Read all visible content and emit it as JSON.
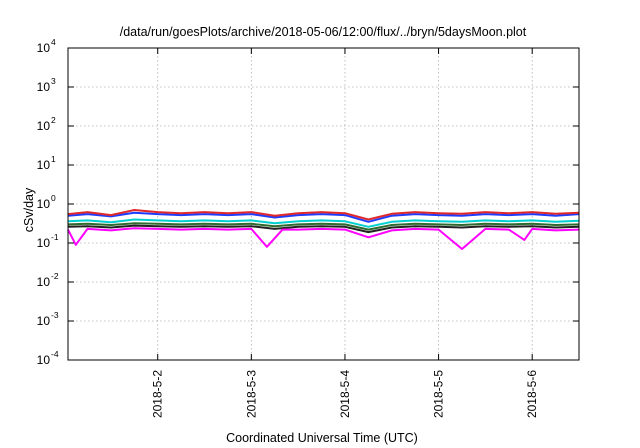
{
  "chart_data": {
    "type": "line",
    "title": "/data/run/goesPlots/archive/2018-05-06/12:00/flux/../bryn/5daysMoon.plot",
    "xlabel": "Coordinated Universal Time (UTC)",
    "ylabel": "cSv/day",
    "y_scale": "log",
    "ylim": [
      0.0001,
      10000
    ],
    "y_ticks": [
      {
        "base": "10",
        "exp": "-4",
        "value": 0.0001
      },
      {
        "base": "10",
        "exp": "-3",
        "value": 0.001
      },
      {
        "base": "10",
        "exp": "-2",
        "value": 0.01
      },
      {
        "base": "10",
        "exp": "-1",
        "value": 0.1
      },
      {
        "base": "10",
        "exp": "0",
        "value": 1
      },
      {
        "base": "10",
        "exp": "1",
        "value": 10
      },
      {
        "base": "10",
        "exp": "2",
        "value": 100
      },
      {
        "base": "10",
        "exp": "3",
        "value": 1000
      },
      {
        "base": "10",
        "exp": "4",
        "value": 10000
      }
    ],
    "xlim": [
      "2018-05-01 01:00",
      "2018-05-06 12:00"
    ],
    "x_ticks": [
      "2018-5-2",
      "2018-5-3",
      "2018-5-4",
      "2018-5-5",
      "2018-5-6"
    ],
    "grid": true,
    "series": [
      {
        "color": "#1e3cff",
        "points": [
          [
            "2018-05-01 01:00",
            0.5
          ],
          [
            "2018-05-01 06:00",
            0.55
          ],
          [
            "2018-05-01 12:00",
            0.48
          ],
          [
            "2018-05-01 18:00",
            0.6
          ],
          [
            "2018-05-02 00:00",
            0.55
          ],
          [
            "2018-05-02 06:00",
            0.52
          ],
          [
            "2018-05-02 12:00",
            0.55
          ],
          [
            "2018-05-02 18:00",
            0.52
          ],
          [
            "2018-05-03 00:00",
            0.55
          ],
          [
            "2018-05-03 06:00",
            0.45
          ],
          [
            "2018-05-03 12:00",
            0.52
          ],
          [
            "2018-05-03 18:00",
            0.55
          ],
          [
            "2018-05-04 00:00",
            0.52
          ],
          [
            "2018-05-04 06:00",
            0.35
          ],
          [
            "2018-05-04 12:00",
            0.5
          ],
          [
            "2018-05-04 18:00",
            0.55
          ],
          [
            "2018-05-05 00:00",
            0.52
          ],
          [
            "2018-05-05 06:00",
            0.5
          ],
          [
            "2018-05-05 12:00",
            0.55
          ],
          [
            "2018-05-05 18:00",
            0.52
          ],
          [
            "2018-05-06 00:00",
            0.55
          ],
          [
            "2018-05-06 06:00",
            0.5
          ],
          [
            "2018-05-06 12:00",
            0.55
          ]
        ]
      },
      {
        "color": "#e0282a",
        "points": [
          [
            "2018-05-01 01:00",
            0.55
          ],
          [
            "2018-05-01 06:00",
            0.62
          ],
          [
            "2018-05-01 12:00",
            0.52
          ],
          [
            "2018-05-01 18:00",
            0.7
          ],
          [
            "2018-05-02 00:00",
            0.62
          ],
          [
            "2018-05-02 06:00",
            0.58
          ],
          [
            "2018-05-02 12:00",
            0.62
          ],
          [
            "2018-05-02 18:00",
            0.58
          ],
          [
            "2018-05-03 00:00",
            0.62
          ],
          [
            "2018-05-03 06:00",
            0.5
          ],
          [
            "2018-05-03 12:00",
            0.58
          ],
          [
            "2018-05-03 18:00",
            0.62
          ],
          [
            "2018-05-04 00:00",
            0.58
          ],
          [
            "2018-05-04 06:00",
            0.4
          ],
          [
            "2018-05-04 12:00",
            0.56
          ],
          [
            "2018-05-04 18:00",
            0.62
          ],
          [
            "2018-05-05 00:00",
            0.58
          ],
          [
            "2018-05-05 06:00",
            0.56
          ],
          [
            "2018-05-05 12:00",
            0.62
          ],
          [
            "2018-05-05 18:00",
            0.58
          ],
          [
            "2018-05-06 00:00",
            0.62
          ],
          [
            "2018-05-06 06:00",
            0.56
          ],
          [
            "2018-05-06 12:00",
            0.6
          ]
        ]
      },
      {
        "color": "#00d0d0",
        "points": [
          [
            "2018-05-01 01:00",
            0.36
          ],
          [
            "2018-05-01 06:00",
            0.38
          ],
          [
            "2018-05-01 12:00",
            0.34
          ],
          [
            "2018-05-01 18:00",
            0.4
          ],
          [
            "2018-05-02 00:00",
            0.38
          ],
          [
            "2018-05-02 06:00",
            0.36
          ],
          [
            "2018-05-02 12:00",
            0.38
          ],
          [
            "2018-05-02 18:00",
            0.36
          ],
          [
            "2018-05-03 00:00",
            0.38
          ],
          [
            "2018-05-03 06:00",
            0.32
          ],
          [
            "2018-05-03 12:00",
            0.36
          ],
          [
            "2018-05-03 18:00",
            0.38
          ],
          [
            "2018-05-04 00:00",
            0.36
          ],
          [
            "2018-05-04 06:00",
            0.26
          ],
          [
            "2018-05-04 12:00",
            0.35
          ],
          [
            "2018-05-04 18:00",
            0.38
          ],
          [
            "2018-05-05 00:00",
            0.36
          ],
          [
            "2018-05-05 06:00",
            0.35
          ],
          [
            "2018-05-05 12:00",
            0.38
          ],
          [
            "2018-05-05 18:00",
            0.36
          ],
          [
            "2018-05-06 00:00",
            0.38
          ],
          [
            "2018-05-06 06:00",
            0.35
          ],
          [
            "2018-05-06 12:00",
            0.37
          ]
        ]
      },
      {
        "color": "#2f6b2f",
        "points": [
          [
            "2018-05-01 01:00",
            0.3
          ],
          [
            "2018-05-01 06:00",
            0.31
          ],
          [
            "2018-05-01 12:00",
            0.29
          ],
          [
            "2018-05-01 18:00",
            0.32
          ],
          [
            "2018-05-02 00:00",
            0.31
          ],
          [
            "2018-05-02 06:00",
            0.3
          ],
          [
            "2018-05-02 12:00",
            0.31
          ],
          [
            "2018-05-02 18:00",
            0.3
          ],
          [
            "2018-05-03 00:00",
            0.31
          ],
          [
            "2018-05-03 06:00",
            0.27
          ],
          [
            "2018-05-03 12:00",
            0.3
          ],
          [
            "2018-05-03 18:00",
            0.31
          ],
          [
            "2018-05-04 00:00",
            0.3
          ],
          [
            "2018-05-04 06:00",
            0.22
          ],
          [
            "2018-05-04 12:00",
            0.29
          ],
          [
            "2018-05-04 18:00",
            0.31
          ],
          [
            "2018-05-05 00:00",
            0.3
          ],
          [
            "2018-05-05 06:00",
            0.29
          ],
          [
            "2018-05-05 12:00",
            0.31
          ],
          [
            "2018-05-05 18:00",
            0.3
          ],
          [
            "2018-05-06 00:00",
            0.31
          ],
          [
            "2018-05-06 06:00",
            0.29
          ],
          [
            "2018-05-06 12:00",
            0.3
          ]
        ]
      },
      {
        "color": "#222222",
        "points": [
          [
            "2018-05-01 01:00",
            0.26
          ],
          [
            "2018-05-01 06:00",
            0.27
          ],
          [
            "2018-05-01 12:00",
            0.25
          ],
          [
            "2018-05-01 18:00",
            0.28
          ],
          [
            "2018-05-02 00:00",
            0.27
          ],
          [
            "2018-05-02 06:00",
            0.26
          ],
          [
            "2018-05-02 12:00",
            0.27
          ],
          [
            "2018-05-02 18:00",
            0.26
          ],
          [
            "2018-05-03 00:00",
            0.27
          ],
          [
            "2018-05-03 06:00",
            0.23
          ],
          [
            "2018-05-03 12:00",
            0.26
          ],
          [
            "2018-05-03 18:00",
            0.27
          ],
          [
            "2018-05-04 00:00",
            0.26
          ],
          [
            "2018-05-04 06:00",
            0.19
          ],
          [
            "2018-05-04 12:00",
            0.25
          ],
          [
            "2018-05-04 18:00",
            0.27
          ],
          [
            "2018-05-05 00:00",
            0.26
          ],
          [
            "2018-05-05 06:00",
            0.25
          ],
          [
            "2018-05-05 12:00",
            0.27
          ],
          [
            "2018-05-05 18:00",
            0.26
          ],
          [
            "2018-05-06 00:00",
            0.27
          ],
          [
            "2018-05-06 06:00",
            0.25
          ],
          [
            "2018-05-06 12:00",
            0.26
          ]
        ]
      },
      {
        "color": "#ff00ff",
        "points": [
          [
            "2018-05-01 01:00",
            0.22
          ],
          [
            "2018-05-01 03:00",
            0.09
          ],
          [
            "2018-05-01 06:00",
            0.23
          ],
          [
            "2018-05-01 12:00",
            0.21
          ],
          [
            "2018-05-01 18:00",
            0.24
          ],
          [
            "2018-05-02 00:00",
            0.23
          ],
          [
            "2018-05-02 06:00",
            0.22
          ],
          [
            "2018-05-02 12:00",
            0.23
          ],
          [
            "2018-05-02 18:00",
            0.22
          ],
          [
            "2018-05-03 00:00",
            0.23
          ],
          [
            "2018-05-03 04:00",
            0.08
          ],
          [
            "2018-05-03 08:00",
            0.22
          ],
          [
            "2018-05-03 12:00",
            0.22
          ],
          [
            "2018-05-03 18:00",
            0.23
          ],
          [
            "2018-05-04 00:00",
            0.22
          ],
          [
            "2018-05-04 06:00",
            0.14
          ],
          [
            "2018-05-04 12:00",
            0.21
          ],
          [
            "2018-05-04 18:00",
            0.23
          ],
          [
            "2018-05-05 00:00",
            0.22
          ],
          [
            "2018-05-05 06:00",
            0.07
          ],
          [
            "2018-05-05 12:00",
            0.23
          ],
          [
            "2018-05-05 18:00",
            0.22
          ],
          [
            "2018-05-05 22:00",
            0.12
          ],
          [
            "2018-05-06 00:00",
            0.23
          ],
          [
            "2018-05-06 06:00",
            0.21
          ],
          [
            "2018-05-06 12:00",
            0.22
          ]
        ]
      }
    ]
  }
}
